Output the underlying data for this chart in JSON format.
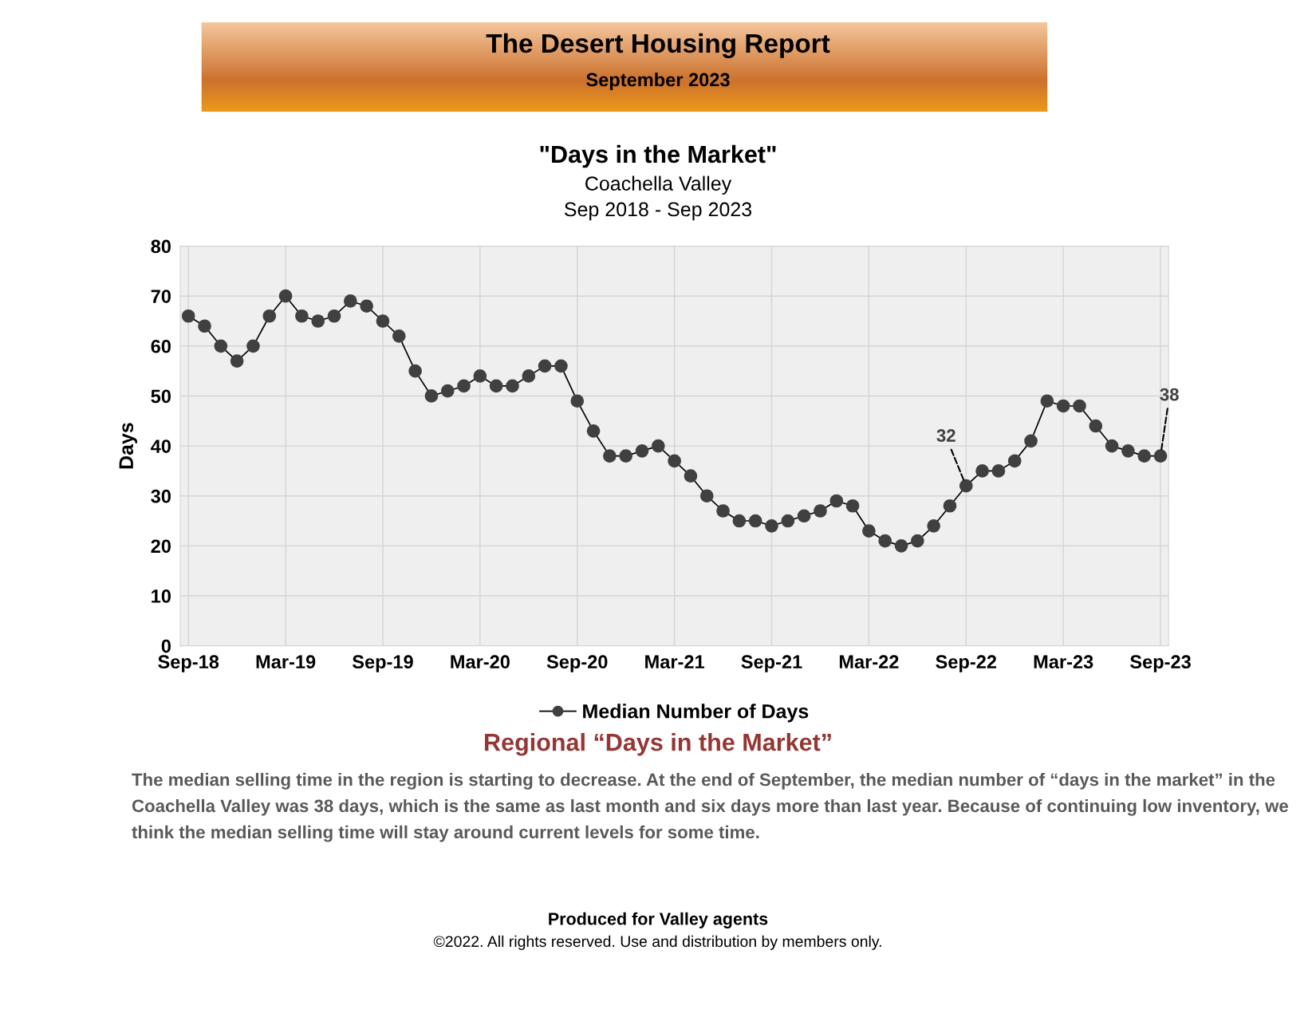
{
  "chart_data": {
    "type": "line",
    "title": "\"Days in the Market\"",
    "subtitle": "Coachella Valley\nSep 2018 - Sep 2023",
    "ylabel": "Days",
    "categories": [
      "Sep-18",
      null,
      null,
      null,
      null,
      null,
      "Mar-19",
      null,
      null,
      null,
      null,
      null,
      "Sep-19",
      null,
      null,
      null,
      null,
      null,
      "Mar-20",
      null,
      null,
      null,
      null,
      null,
      "Sep-20",
      null,
      null,
      null,
      null,
      null,
      "Mar-21",
      null,
      null,
      null,
      null,
      null,
      "Sep-21",
      null,
      null,
      null,
      null,
      null,
      "Mar-22",
      null,
      null,
      null,
      null,
      null,
      "Sep-22",
      null,
      null,
      null,
      null,
      null,
      "Mar-23",
      null,
      null,
      null,
      null,
      null,
      "Sep-23"
    ],
    "series": [
      {
        "name": "Median Number of Days",
        "color": "#404040",
        "values": [
          66,
          64,
          60,
          57,
          60,
          66,
          70,
          66,
          65,
          66,
          69,
          68,
          65,
          62,
          55,
          50,
          51,
          52,
          54,
          52,
          52,
          54,
          56,
          56,
          49,
          43,
          38,
          38,
          39,
          40,
          37,
          34,
          30,
          27,
          25,
          25,
          24,
          25,
          26,
          27,
          29,
          28,
          23,
          21,
          20,
          21,
          24,
          28,
          32,
          35,
          35,
          37,
          41,
          49,
          48,
          48,
          44,
          40,
          39,
          38,
          38
        ]
      }
    ],
    "ylim": [
      0,
      80
    ],
    "yticks": [
      0,
      10,
      20,
      30,
      40,
      50,
      60,
      70,
      80
    ],
    "grid": true,
    "legend": "bottom",
    "marker": "circle",
    "line_style": "solid",
    "annotations": [
      "The Desert Housing Report",
      "September 2023",
      "Regional “Days in the Market”",
      "The median selling time in the region is starting to decrease. At the end of September, the median number of “days in the market” in the Coachella Valley was 38 days, which is the same as last month and six days more than last year. Because of continuing low inventory, we think the median selling time will stay around current levels for some time.",
      "Produced for Valley agents",
      "©2022. All rights reserved. Use and distribution by members only.",
      {
        "text": "32",
        "x": "Sep-22",
        "y": 32
      },
      {
        "text": "38",
        "x": "Sep-23",
        "y": 38
      }
    ]
  }
}
